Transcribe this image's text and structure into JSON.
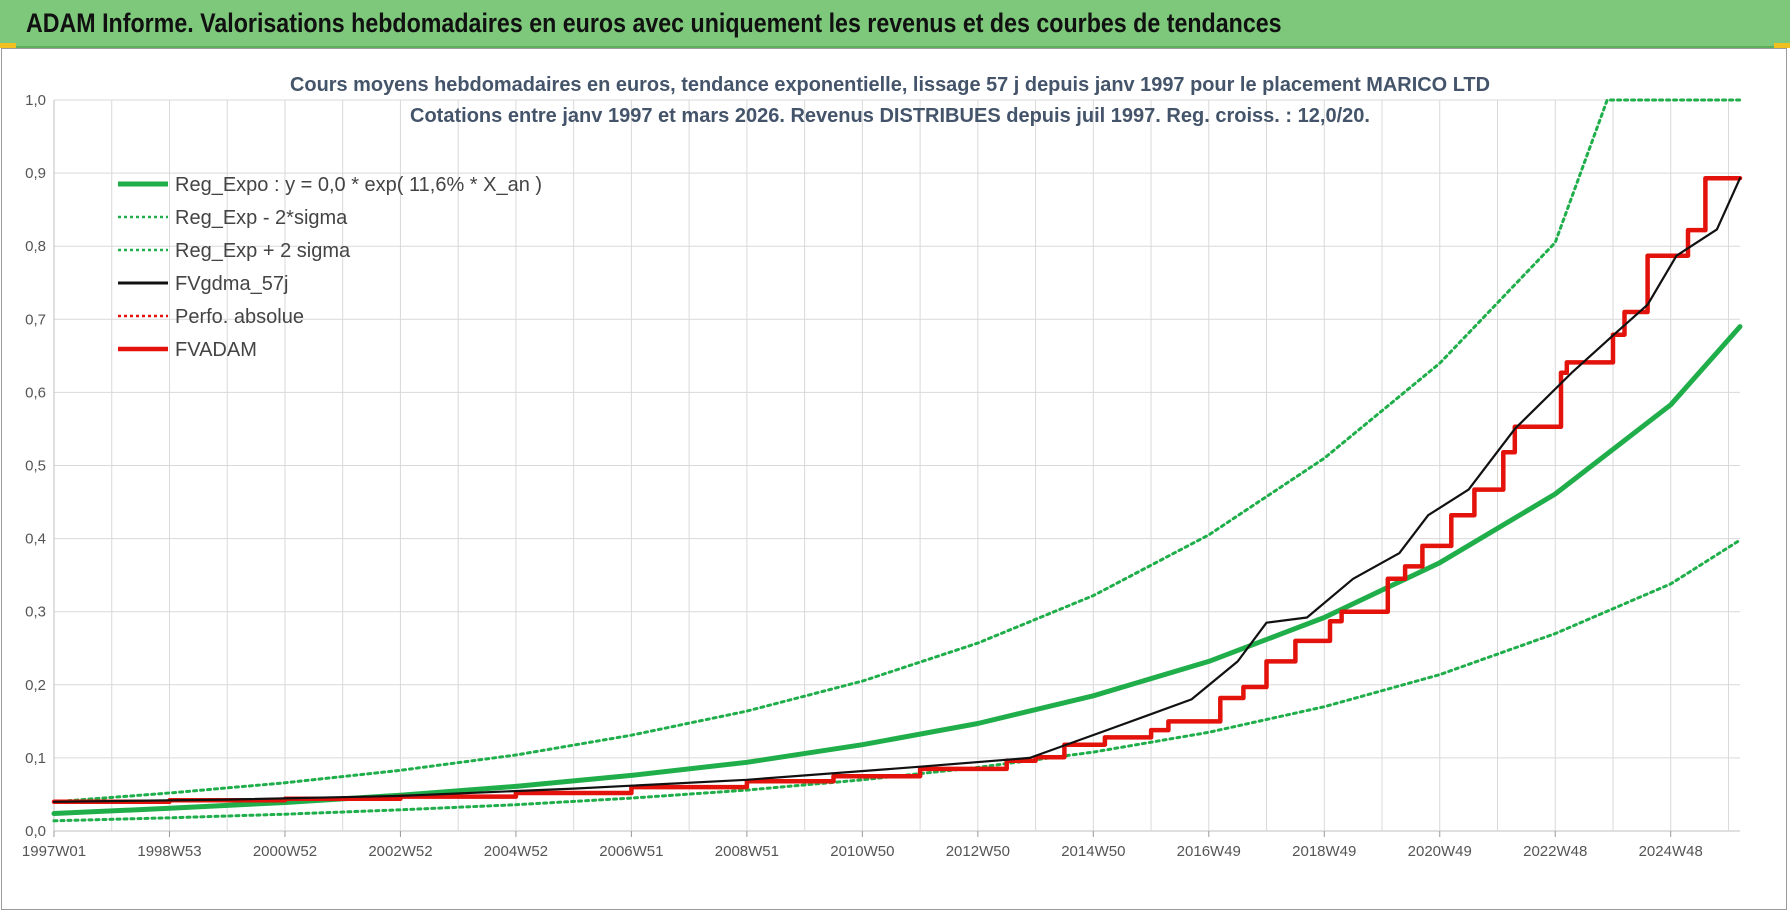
{
  "header": {
    "title": "ADAM Informe. Valorisations hebdomadaires en euros avec uniquement les revenus et des courbes de tendances"
  },
  "colors": {
    "header_bg": "#7dc87a",
    "green": "#1fae4a",
    "red": "#e3120b",
    "black": "#111111",
    "grid": "#d9d9d9"
  },
  "chart_data": {
    "type": "line",
    "title": [
      "Cours moyens hebdomadaires en euros, tendance exponentielle, lissage 57 j depuis janv 1997  pour le placement MARICO LTD",
      "Cotations entre janv 1997 et mars 2026. Revenus DISTRIBUES depuis juil 1997. Reg. croiss. : 12,0/20."
    ],
    "xlabel": "",
    "ylabel": "",
    "ylim": [
      0,
      1.0
    ],
    "xlim": [
      1997.0,
      2026.2
    ],
    "grid": true,
    "legend_position": "top-left",
    "y_ticks": [
      "0,0",
      "0,1",
      "0,2",
      "0,3",
      "0,4",
      "0,5",
      "0,6",
      "0,7",
      "0,8",
      "0,9",
      "1,0"
    ],
    "x_ticks": [
      {
        "label": "1997W01",
        "x": 1997.0
      },
      {
        "label": "1998W53",
        "x": 1999.0
      },
      {
        "label": "2000W52",
        "x": 2001.0
      },
      {
        "label": "2002W52",
        "x": 2003.0
      },
      {
        "label": "2004W52",
        "x": 2005.0
      },
      {
        "label": "2006W51",
        "x": 2007.0
      },
      {
        "label": "2008W51",
        "x": 2009.0
      },
      {
        "label": "2010W50",
        "x": 2011.0
      },
      {
        "label": "2012W50",
        "x": 2013.0
      },
      {
        "label": "2014W50",
        "x": 2015.0
      },
      {
        "label": "2016W49",
        "x": 2017.0
      },
      {
        "label": "2018W49",
        "x": 2019.0
      },
      {
        "label": "2020W49",
        "x": 2021.0
      },
      {
        "label": "2022W48",
        "x": 2023.0
      },
      {
        "label": "2024W48",
        "x": 2025.0
      }
    ],
    "series": [
      {
        "name": "Reg_Expo : y = 0,0 * exp( 11,6% *  X_an )",
        "color": "#1fae4a",
        "style": "solid-thick",
        "x": [
          1997.0,
          1999.0,
          2001.0,
          2003.0,
          2005.0,
          2007.0,
          2009.0,
          2011.0,
          2013.0,
          2015.0,
          2017.0,
          2019.0,
          2021.0,
          2023.0,
          2025.0,
          2026.2
        ],
        "y": [
          0.024,
          0.031,
          0.039,
          0.049,
          0.061,
          0.076,
          0.094,
          0.118,
          0.147,
          0.185,
          0.232,
          0.292,
          0.367,
          0.461,
          0.583,
          0.69
        ]
      },
      {
        "name": "Reg_Exp - 2*sigma",
        "color": "#1fae4a",
        "style": "dotted",
        "x": [
          1997.0,
          1999.0,
          2001.0,
          2003.0,
          2005.0,
          2007.0,
          2009.0,
          2011.0,
          2013.0,
          2015.0,
          2017.0,
          2019.0,
          2021.0,
          2023.0,
          2025.0,
          2026.2
        ],
        "y": [
          0.014,
          0.018,
          0.023,
          0.029,
          0.036,
          0.045,
          0.056,
          0.07,
          0.087,
          0.108,
          0.135,
          0.17,
          0.214,
          0.27,
          0.338,
          0.398
        ]
      },
      {
        "name": "Reg_Exp + 2 sigma",
        "color": "#1fae4a",
        "style": "dotted",
        "x": [
          1997.0,
          1999.0,
          2001.0,
          2003.0,
          2005.0,
          2007.0,
          2009.0,
          2011.0,
          2013.0,
          2015.0,
          2017.0,
          2019.0,
          2021.0,
          2023.0,
          2023.9,
          2026.2
        ],
        "y": [
          0.04,
          0.052,
          0.066,
          0.083,
          0.104,
          0.131,
          0.164,
          0.205,
          0.257,
          0.322,
          0.405,
          0.51,
          0.64,
          0.805,
          1.0,
          1.0
        ]
      },
      {
        "name": "FVgdma_57j",
        "color": "#111111",
        "style": "solid",
        "x": [
          1997.0,
          2000.0,
          2003.0,
          2006.0,
          2009.0,
          2012.0,
          2013.9,
          2015.2,
          2016.7,
          2017.5,
          2018.0,
          2018.7,
          2019.5,
          2020.3,
          2020.8,
          2021.5,
          2022.3,
          2023.3,
          2024.0,
          2024.6,
          2025.1,
          2025.8,
          2026.2
        ],
        "y": [
          0.04,
          0.043,
          0.048,
          0.058,
          0.07,
          0.088,
          0.1,
          0.137,
          0.18,
          0.232,
          0.285,
          0.292,
          0.345,
          0.38,
          0.432,
          0.467,
          0.55,
          0.628,
          0.678,
          0.72,
          0.787,
          0.823,
          0.893
        ]
      },
      {
        "name": "Perfo. absolue",
        "color": "#e3120b",
        "style": "dotted",
        "x": [],
        "y": []
      },
      {
        "name": "FVADAM",
        "color": "#e3120b",
        "style": "step-thick",
        "x": [
          1997.0,
          1999.0,
          2001.0,
          2003.0,
          2005.0,
          2007.0,
          2009.0,
          2010.5,
          2012.0,
          2013.5,
          2014.0,
          2014.5,
          2015.2,
          2016.0,
          2016.3,
          2017.2,
          2017.6,
          2018.0,
          2018.5,
          2019.1,
          2019.3,
          2020.1,
          2020.4,
          2020.7,
          2021.2,
          2021.6,
          2022.1,
          2022.3,
          2023.1,
          2023.2,
          2024.0,
          2024.2,
          2024.6,
          2025.3,
          2025.6,
          2026.2
        ],
        "y": [
          0.04,
          0.042,
          0.044,
          0.047,
          0.052,
          0.06,
          0.068,
          0.075,
          0.085,
          0.096,
          0.101,
          0.118,
          0.128,
          0.138,
          0.15,
          0.182,
          0.197,
          0.232,
          0.26,
          0.287,
          0.3,
          0.345,
          0.362,
          0.39,
          0.432,
          0.467,
          0.518,
          0.553,
          0.627,
          0.641,
          0.679,
          0.71,
          0.787,
          0.822,
          0.893,
          0.893
        ]
      }
    ]
  }
}
